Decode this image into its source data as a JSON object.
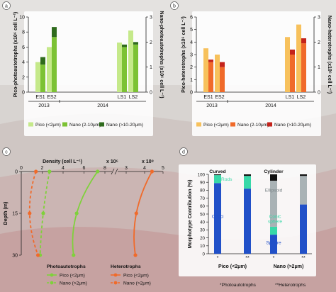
{
  "panel_labels": [
    "a",
    "b",
    "c",
    "d"
  ],
  "colors": {
    "pico_auto": "#c5e98a",
    "nano_small_auto": "#7cc234",
    "nano_large_auto": "#2f6b1d",
    "pico_het": "#f7c15c",
    "nano_small_het": "#f06a2a",
    "nano_large_het": "#c4231b",
    "cocci": "#2150c8",
    "rods": "#38d8a8",
    "ellipsoid": "#a9b2b5",
    "cylinder": "#111111",
    "curved": "#111111"
  },
  "chart_data": [
    {
      "panel": "a",
      "type": "bar",
      "stacked": true,
      "ylabel": "Pico-photoautotrophs (x10⁶ cell L⁻¹)",
      "y2label": "Nano-photoautotrophs (x10⁶ cell L⁻¹)",
      "ylim": [
        0,
        10
      ],
      "y2lim": [
        0,
        3
      ],
      "categories": [
        "ES1",
        "ES2",
        "LS1",
        "LS2"
      ],
      "years": [
        {
          "label": "2013",
          "categories": [
            "ES1",
            "ES2"
          ]
        },
        {
          "label": "2014",
          "categories": [
            "LS1",
            "LS2"
          ]
        }
      ],
      "pico_values": [
        4.0,
        6.0,
        6.6,
        8.2
      ],
      "nano_values": [
        {
          "name": "Nano (2-10μm)",
          "values": [
            1.1,
            2.2,
            1.8,
            1.9
          ]
        },
        {
          "name": "Nano (>10-20μm)",
          "values": [
            0.3,
            0.4,
            0.1,
            0.1
          ]
        }
      ],
      "legend": [
        "Pico (<2μm)",
        "Nano (2-10μm)",
        "Nano (>10-20μm)"
      ]
    },
    {
      "panel": "b",
      "type": "bar",
      "stacked": true,
      "ylabel": "Pico-heterotrophs (x10⁶ cell L⁻¹)",
      "y2label": "Nano-heterotrophs (x10⁶ cell L⁻¹)",
      "ylim": [
        0,
        6
      ],
      "y2lim": [
        0,
        3
      ],
      "categories": [
        "ES1",
        "ES2",
        "LS1",
        "LS2"
      ],
      "years": [
        {
          "label": "2013",
          "categories": [
            "ES1",
            "ES2"
          ]
        },
        {
          "label": "2014",
          "categories": [
            "LS1",
            "LS2"
          ]
        }
      ],
      "pico_values": [
        3.5,
        3.0,
        4.4,
        5.4
      ],
      "nano_values": [
        {
          "name": "Nano (2-10μm)",
          "values": [
            1.2,
            1.0,
            1.5,
            1.95
          ]
        },
        {
          "name": "Nano (>10-20μm)",
          "values": [
            0.1,
            0.2,
            0.2,
            0.2
          ]
        }
      ],
      "legend": [
        "Pico (<2μm)",
        "Nano (2-10μm)",
        "Nano (>10-20μm)"
      ]
    },
    {
      "panel": "c",
      "type": "line",
      "xlabel": "Density (cell L⁻¹)",
      "ylabel": "Depth (m)",
      "ylim": [
        0,
        30
      ],
      "y_ticks": [
        0,
        15,
        30
      ],
      "x_ticks_left": [
        0,
        2,
        4,
        6,
        8
      ],
      "x_ticks_right": [
        3,
        4,
        5
      ],
      "x_left_multiplier": "x 10⁶",
      "x_right_multiplier": "x 10⁸",
      "series": [
        {
          "name": "Photoautotrophs Pico (<2μm)",
          "scale": "left",
          "dash": false,
          "color": "#7fd13b",
          "points": [
            [
              7.3,
              0
            ],
            [
              5.3,
              15
            ],
            [
              5.0,
              30
            ]
          ]
        },
        {
          "name": "Photoautotrophs Nano (>2μm)",
          "scale": "left",
          "dash": true,
          "color": "#7fd13b",
          "points": [
            [
              2.7,
              0
            ],
            [
              2.1,
              15
            ],
            [
              1.8,
              30
            ]
          ]
        },
        {
          "name": "Heterotrophs Pico (<2μm)",
          "scale": "right",
          "dash": false,
          "color": "#f06a2a",
          "points": [
            [
              4.4,
              0
            ],
            [
              3.55,
              15
            ],
            [
              3.5,
              30
            ]
          ]
        },
        {
          "name": "Heterotrophs Nano (>2μm)",
          "scale": "left",
          "dash": true,
          "color": "#f06a2a",
          "points": [
            [
              1.4,
              0
            ],
            [
              0.8,
              15
            ],
            [
              1.6,
              30
            ]
          ]
        }
      ],
      "legend": {
        "photo_title": "Photoautotrophs",
        "het_title": "Heterotrophs",
        "pico": "Pico (<2μm)",
        "nano": "Nano (>2μm)"
      }
    },
    {
      "panel": "d",
      "type": "bar",
      "stacked": true,
      "ylabel": "Morphotype Contribution (%)",
      "ylim": [
        0,
        100
      ],
      "y_ticks": [
        0,
        10,
        20,
        30,
        40,
        50,
        60,
        70,
        80,
        90,
        100
      ],
      "groups": [
        {
          "label": "Pico (<2μm)",
          "bars": [
            {
              "marker": "*",
              "segments": [
                {
                  "name": "Cocci",
                  "value": 89
                },
                {
                  "name": "Rods",
                  "value": 10
                },
                {
                  "name": "Curved",
                  "value": 1
                }
              ]
            },
            {
              "marker": "**",
              "segments": [
                {
                  "name": "Cocci",
                  "value": 82
                },
                {
                  "name": "Rods",
                  "value": 16
                },
                {
                  "name": "Curved",
                  "value": 2
                }
              ]
            }
          ]
        },
        {
          "label": "Nano (>2μm)",
          "bars": [
            {
              "marker": "*",
              "segments": [
                {
                  "name": "Sphere",
                  "value": 24
                },
                {
                  "name": "Conic sphere",
                  "value": 10
                },
                {
                  "name": "Ellipsoid",
                  "value": 58
                },
                {
                  "name": "Cylinder",
                  "value": 8
                }
              ]
            },
            {
              "marker": "**",
              "segments": [
                {
                  "name": "Sphere",
                  "value": 62
                },
                {
                  "name": "Ellipsoid",
                  "value": 36
                },
                {
                  "name": "Cylinder",
                  "value": 2
                }
              ]
            }
          ]
        }
      ],
      "inline_labels": [
        "Curved",
        "Rods",
        "Cocci",
        "Cylinder",
        "Ellipsoid",
        "Conic sphere",
        "Sphere"
      ],
      "footnote_photo": "*Photoautotrophs",
      "footnote_het": "**Heterotrophs"
    }
  ]
}
